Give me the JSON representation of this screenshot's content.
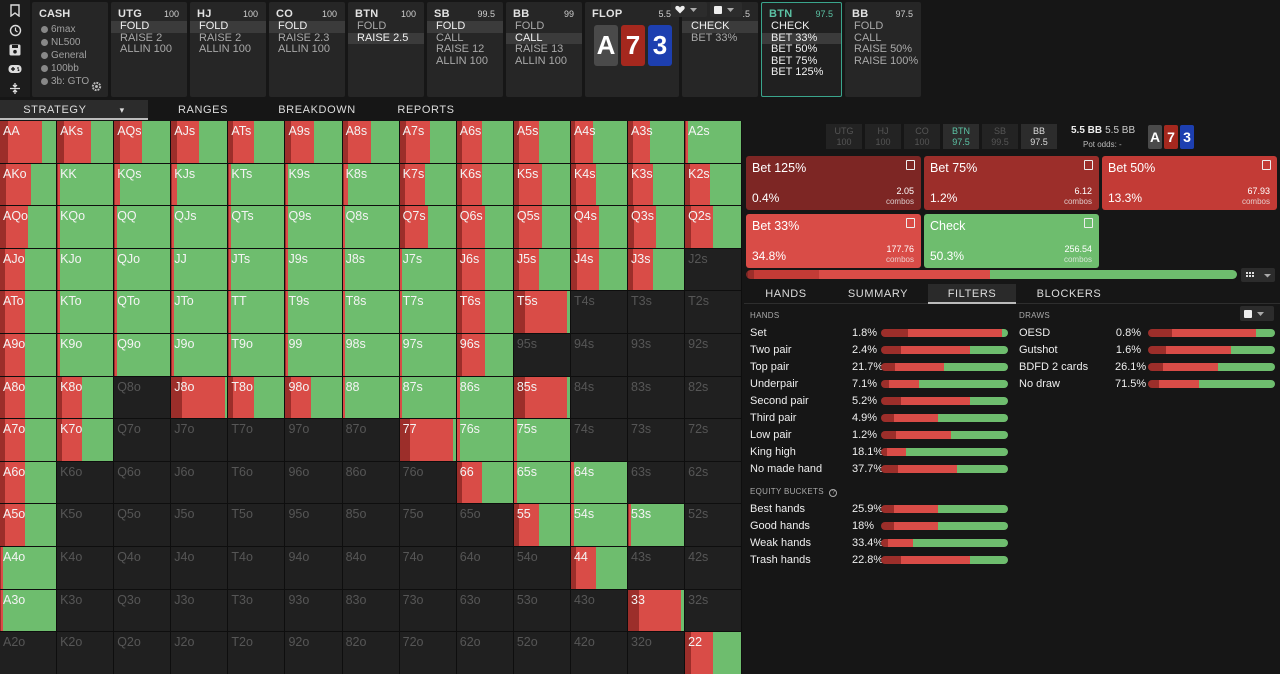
{
  "toolbar": {
    "icons": [
      "bookmark-icon",
      "history-icon",
      "save-icon",
      "gamepad-icon",
      "adjust-icon"
    ]
  },
  "cash": {
    "title": "CASH",
    "info": [
      "6max",
      "NL500",
      "General",
      "100bb",
      "3b: GTO"
    ],
    "info_small": [
      "",
      "",
      "",
      "",
      ""
    ]
  },
  "positions": [
    {
      "name": "UTG",
      "stack": "100",
      "options": [
        "FOLD",
        "RAISE 2",
        "ALLIN 100"
      ],
      "selected": 0
    },
    {
      "name": "HJ",
      "stack": "100",
      "options": [
        "FOLD",
        "RAISE 2",
        "ALLIN 100"
      ],
      "selected": 0
    },
    {
      "name": "CO",
      "stack": "100",
      "options": [
        "FOLD",
        "RAISE 2.3",
        "ALLIN 100"
      ],
      "selected": 0
    },
    {
      "name": "BTN",
      "stack": "100",
      "options": [
        "FOLD",
        "RAISE 2.5"
      ],
      "selected": 1
    },
    {
      "name": "SB",
      "stack": "99.5",
      "options": [
        "FOLD",
        "CALL",
        "RAISE 12",
        "ALLIN 100"
      ],
      "selected": 0
    },
    {
      "name": "BB",
      "stack": "99",
      "options": [
        "FOLD",
        "CALL",
        "RAISE 13",
        "ALLIN 100"
      ],
      "selected": 1
    }
  ],
  "flop": {
    "label": "FLOP",
    "pot": "5.5",
    "cards": [
      {
        "rank": "A",
        "suit": "s"
      },
      {
        "rank": "7",
        "suit": "h"
      },
      {
        "rank": "3",
        "suit": "d"
      }
    ]
  },
  "street": [
    {
      "name": "BB",
      "stack": "97.5",
      "options": [
        "CHECK",
        "BET 33%"
      ],
      "selected": 0
    },
    {
      "name": "BTN",
      "stack": "97.5",
      "options": [
        "CHECK",
        "BET 33%",
        "BET 50%",
        "BET 75%",
        "BET 125%"
      ],
      "selected": 1,
      "active": true
    },
    {
      "name": "BB",
      "stack": "97.5",
      "options": [
        "FOLD",
        "CALL",
        "RAISE 50%",
        "RAISE 100%"
      ],
      "selected": -1
    }
  ],
  "tabs": [
    "STRATEGY",
    "RANGES",
    "BREAKDOWN",
    "REPORTS"
  ],
  "colors": {
    "red": "#d94c47",
    "green": "#6ebd6e",
    "dark_red": "#9c2e2a",
    "mid_red": "#c33b36",
    "accent": "#3aa58c"
  },
  "matrix": {
    "rows": [
      [
        "AA",
        "AKs",
        "AQs",
        "AJs",
        "ATs",
        "A9s",
        "A8s",
        "A7s",
        "A6s",
        "A5s",
        "A4s",
        "A3s",
        "A2s"
      ],
      [
        "AKo",
        "KK",
        "KQs",
        "KJs",
        "KTs",
        "K9s",
        "K8s",
        "K7s",
        "K6s",
        "K5s",
        "K4s",
        "K3s",
        "K2s"
      ],
      [
        "AQo",
        "KQo",
        "QQ",
        "QJs",
        "QTs",
        "Q9s",
        "Q8s",
        "Q7s",
        "Q6s",
        "Q5s",
        "Q4s",
        "Q3s",
        "Q2s"
      ],
      [
        "AJo",
        "KJo",
        "QJo",
        "JJ",
        "JTs",
        "J9s",
        "J8s",
        "J7s",
        "J6s",
        "J5s",
        "J4s",
        "J3s",
        "J2s"
      ],
      [
        "ATo",
        "KTo",
        "QTo",
        "JTo",
        "TT",
        "T9s",
        "T8s",
        "T7s",
        "T6s",
        "T5s",
        "T4s",
        "T3s",
        "T2s"
      ],
      [
        "A9o",
        "K9o",
        "Q9o",
        "J9o",
        "T9o",
        "99",
        "98s",
        "97s",
        "96s",
        "95s",
        "94s",
        "93s",
        "92s"
      ],
      [
        "A8o",
        "K8o",
        "Q8o",
        "J8o",
        "T8o",
        "98o",
        "88",
        "87s",
        "86s",
        "85s",
        "84s",
        "83s",
        "82s"
      ],
      [
        "A7o",
        "K7o",
        "Q7o",
        "J7o",
        "T7o",
        "97o",
        "87o",
        "77",
        "76s",
        "75s",
        "74s",
        "73s",
        "72s"
      ],
      [
        "A6o",
        "K6o",
        "Q6o",
        "J6o",
        "T6o",
        "96o",
        "86o",
        "76o",
        "66",
        "65s",
        "64s",
        "63s",
        "62s"
      ],
      [
        "A5o",
        "K5o",
        "Q5o",
        "J5o",
        "T5o",
        "95o",
        "85o",
        "75o",
        "65o",
        "55",
        "54s",
        "53s",
        "52s"
      ],
      [
        "A4o",
        "K4o",
        "Q4o",
        "J4o",
        "T4o",
        "94o",
        "84o",
        "74o",
        "64o",
        "54o",
        "44",
        "43s",
        "42s"
      ],
      [
        "A3o",
        "K3o",
        "Q3o",
        "J3o",
        "T3o",
        "93o",
        "83o",
        "73o",
        "63o",
        "53o",
        "43o",
        "33",
        "32s"
      ],
      [
        "A2o",
        "K2o",
        "Q2o",
        "J2o",
        "T2o",
        "92o",
        "82o",
        "72o",
        "62o",
        "52o",
        "42o",
        "32o",
        "22"
      ]
    ],
    "bet_fraction": [
      [
        0.75,
        0.6,
        0.5,
        0.5,
        0.45,
        0.5,
        0.5,
        0.55,
        0.45,
        0.45,
        0.4,
        0.4,
        0.05
      ],
      [
        0.55,
        0.05,
        0.1,
        0.1,
        0.05,
        0.05,
        0.1,
        0.45,
        0.45,
        0.5,
        0.45,
        0.45,
        0.45
      ],
      [
        0.5,
        0.05,
        0.05,
        0.05,
        0.05,
        0.05,
        0.05,
        0.5,
        0.5,
        0.5,
        0.5,
        0.5,
        0.5
      ],
      [
        0.45,
        0.05,
        0.05,
        0.05,
        0.05,
        0.05,
        0.05,
        0.05,
        0.5,
        0.45,
        0.5,
        0.45,
        null
      ],
      [
        0.45,
        0.05,
        0.05,
        0.05,
        0.05,
        0.05,
        0.05,
        0.05,
        0.5,
        0.95,
        null,
        null,
        null
      ],
      [
        0.45,
        0.05,
        0.05,
        0.05,
        0.05,
        0.05,
        0.05,
        0.05,
        0.5,
        null,
        null,
        null,
        null
      ],
      [
        0.45,
        0.45,
        null,
        0.95,
        0.45,
        0.45,
        0.05,
        0.05,
        0.05,
        0.95,
        null,
        null,
        null
      ],
      [
        0.45,
        0.45,
        null,
        null,
        null,
        null,
        null,
        0.95,
        0.05,
        0.05,
        null,
        null,
        null
      ],
      [
        0.45,
        null,
        null,
        null,
        null,
        null,
        null,
        null,
        0.45,
        0.05,
        0.05,
        null,
        null
      ],
      [
        0.45,
        null,
        null,
        null,
        null,
        null,
        null,
        null,
        null,
        0.45,
        0.05,
        0.05,
        null
      ],
      [
        0.05,
        null,
        null,
        null,
        null,
        null,
        null,
        null,
        null,
        null,
        0.45,
        null,
        null
      ],
      [
        0.05,
        null,
        null,
        null,
        null,
        null,
        null,
        null,
        null,
        null,
        null,
        0.95,
        null
      ],
      [
        null,
        null,
        null,
        null,
        null,
        null,
        null,
        null,
        null,
        null,
        null,
        null,
        0.5
      ]
    ]
  },
  "seats": [
    {
      "name": "UTG",
      "stack": "100"
    },
    {
      "name": "HJ",
      "stack": "100"
    },
    {
      "name": "CO",
      "stack": "100"
    },
    {
      "name": "BTN",
      "stack": "97.5"
    },
    {
      "name": "SB",
      "stack": "99.5"
    },
    {
      "name": "BB",
      "stack": "97.5"
    }
  ],
  "pot": {
    "value": "5.5 BB",
    "sub": "5.5 BB",
    "odds_label": "Pot odds:",
    "odds_value": "-"
  },
  "actions": [
    {
      "name": "Bet 125%",
      "pct": "0.4%",
      "combos": "2.05",
      "combos_label": "combos",
      "color": "#7d2624"
    },
    {
      "name": "Bet 75%",
      "pct": "1.2%",
      "combos": "6.12",
      "combos_label": "combos",
      "color": "#9c2e2a"
    },
    {
      "name": "Bet 50%",
      "pct": "13.3%",
      "combos": "67.93",
      "combos_label": "combos",
      "color": "#c33b36"
    },
    {
      "name": "Bet 33%",
      "pct": "34.8%",
      "combos": "177.76",
      "combos_label": "combos",
      "color": "#d94c47"
    },
    {
      "name": "Check",
      "pct": "50.3%",
      "combos": "256.54",
      "combos_label": "combos",
      "color": "#6ebd6e"
    }
  ],
  "subtabs": [
    "HANDS",
    "SUMMARY",
    "FILTERS",
    "BLOCKERS"
  ],
  "filters": {
    "hands_title": "HANDS",
    "hands": [
      {
        "name": "Set",
        "value": "1.8%",
        "bet": 0.95
      },
      {
        "name": "Two pair",
        "value": "2.4%",
        "bet": 0.7
      },
      {
        "name": "Top pair",
        "value": "21.7%",
        "bet": 0.5
      },
      {
        "name": "Underpair",
        "value": "7.1%",
        "bet": 0.3
      },
      {
        "name": "Second pair",
        "value": "5.2%",
        "bet": 0.7
      },
      {
        "name": "Third pair",
        "value": "4.9%",
        "bet": 0.45
      },
      {
        "name": "Low pair",
        "value": "1.2%",
        "bet": 0.55
      },
      {
        "name": "King high",
        "value": "18.1%",
        "bet": 0.2
      },
      {
        "name": "No made hand",
        "value": "37.7%",
        "bet": 0.6
      }
    ],
    "equity_title": "EQUITY BUCKETS",
    "equity": [
      {
        "name": "Best hands",
        "value": "25.9%",
        "bet": 0.45
      },
      {
        "name": "Good hands",
        "value": "18%",
        "bet": 0.45
      },
      {
        "name": "Weak hands",
        "value": "33.4%",
        "bet": 0.25
      },
      {
        "name": "Trash hands",
        "value": "22.8%",
        "bet": 0.7
      }
    ],
    "draws_title": "DRAWS",
    "draws": [
      {
        "name": "OESD",
        "value": "0.8%",
        "bet": 0.85
      },
      {
        "name": "Gutshot",
        "value": "1.6%",
        "bet": 0.65
      },
      {
        "name": "BDFD 2 cards",
        "value": "26.1%",
        "bet": 0.55
      },
      {
        "name": "No draw",
        "value": "71.5%",
        "bet": 0.4
      }
    ]
  }
}
